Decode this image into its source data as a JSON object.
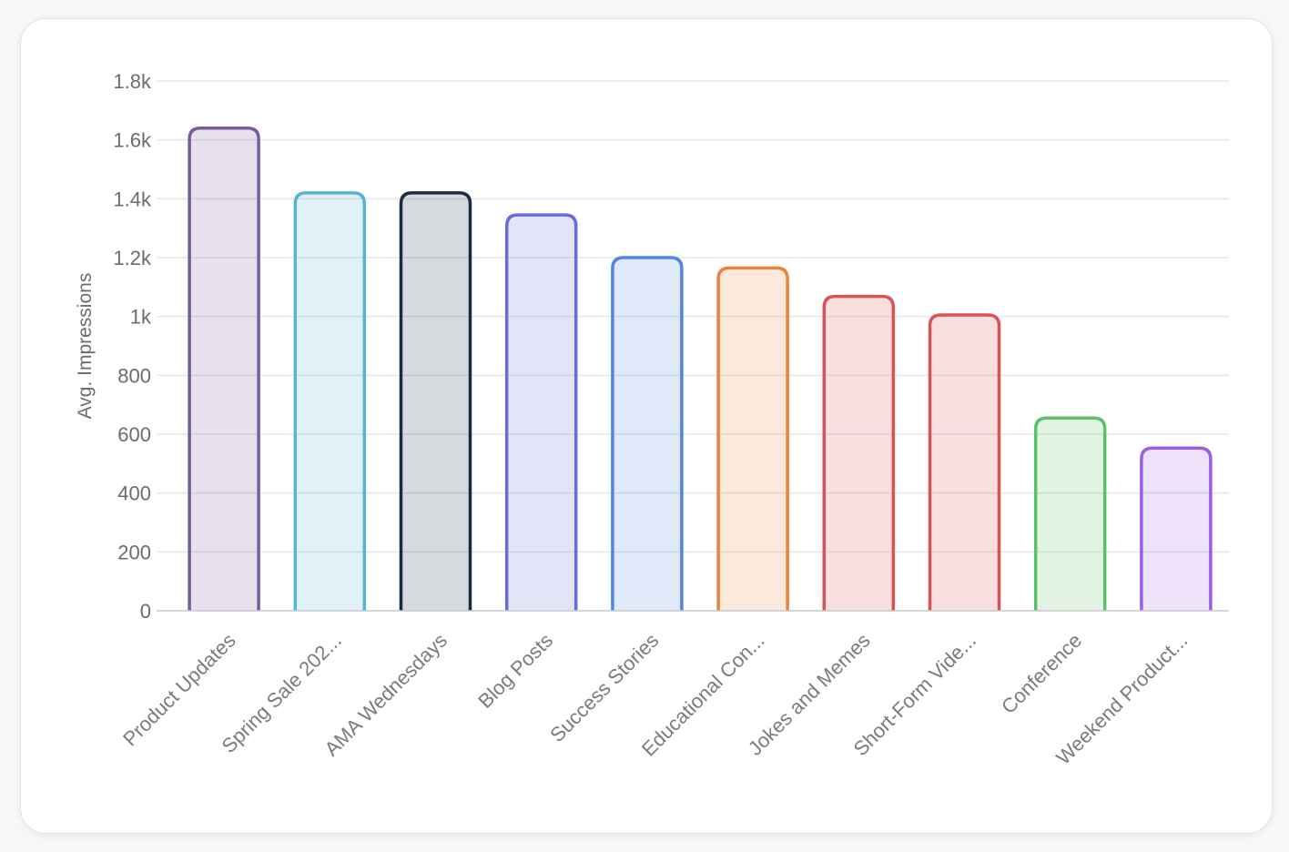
{
  "chart_data": {
    "type": "bar",
    "title": "",
    "xlabel": "",
    "ylabel": "Avg. Impressions",
    "ylim": [
      0,
      1800
    ],
    "yticks": [
      0,
      200,
      400,
      600,
      800,
      1000,
      1200,
      1400,
      1600,
      1800
    ],
    "ytick_labels": [
      "0",
      "200",
      "400",
      "600",
      "800",
      "1k",
      "1.2k",
      "1.4k",
      "1.6k",
      "1.8k"
    ],
    "grid": true,
    "legend": "none",
    "categories": [
      "Product Updates",
      "Spring Sale 202...",
      "AMA Wednesdays",
      "Blog Posts",
      "Success Stories",
      "Educational Con...",
      "Jokes and Memes",
      "Short-Form Vide...",
      "Conference",
      "Weekend Product..."
    ],
    "values": [
      1640,
      1420,
      1420,
      1345,
      1200,
      1165,
      1068,
      1005,
      655,
      553
    ],
    "colors": [
      "#7a5aa0",
      "#55b4d0",
      "#1c2b45",
      "#6a6ae0",
      "#4f86e6",
      "#e8843c",
      "#d85454",
      "#d85454",
      "#5cbf6a",
      "#9a5ee6"
    ]
  }
}
